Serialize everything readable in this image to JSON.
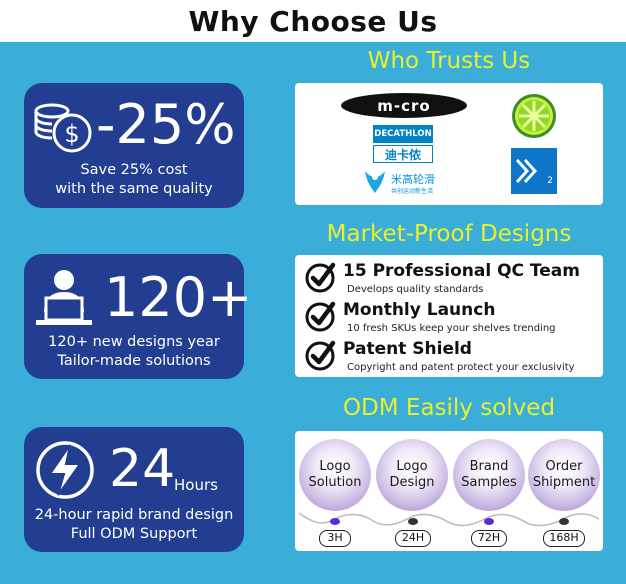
{
  "header": {
    "title": "Why Choose Us"
  },
  "stats": [
    {
      "value": "-25%",
      "line1": "Save 25% cost",
      "line2": "with the same quality",
      "icon": "coins-dollar-icon"
    },
    {
      "value": "120+",
      "line1": "120+ new designs year",
      "line2": "Tailor-made solutions",
      "icon": "person-laptop-icon"
    },
    {
      "value": "24",
      "unit": "Hours",
      "line1": "24-hour rapid brand design",
      "line2": "Full ODM Support",
      "icon": "lightning-bolt-icon"
    }
  ],
  "sections": {
    "trust": {
      "title": "Who Trusts Us",
      "logos": {
        "micro": "m-cro",
        "decathlon_top": "DECATHLON",
        "decathlon_bottom": "迪卡侬",
        "migao": "米高轮滑",
        "migao_sub": "共创运动新生活",
        "k2": "2"
      }
    },
    "market": {
      "title": "Market-Proof Designs",
      "items": [
        {
          "title": "15 Professional QC Team",
          "desc": "Develops quality standards"
        },
        {
          "title": "Monthly Launch",
          "desc": "10 fresh SKUs keep your shelves trending"
        },
        {
          "title": "Patent Shield",
          "desc": "Copyright and patent protect your exclusivity"
        }
      ]
    },
    "odm": {
      "title": "ODM Easily solved",
      "steps": [
        {
          "line1": "Logo",
          "line2": "Solution",
          "time": "3H",
          "dot_color": "#5b2bd6"
        },
        {
          "line1": "Logo",
          "line2": "Design",
          "time": "24H",
          "dot_color": "#333333"
        },
        {
          "line1": "Brand",
          "line2": "Samples",
          "time": "72H",
          "dot_color": "#5b2bd6"
        },
        {
          "line1": "Order",
          "line2": "Shipment",
          "time": "168H",
          "dot_color": "#333333"
        }
      ]
    }
  },
  "colors": {
    "background": "#3aaed8",
    "card": "#233e91",
    "accent_title": "#e8f12b"
  }
}
